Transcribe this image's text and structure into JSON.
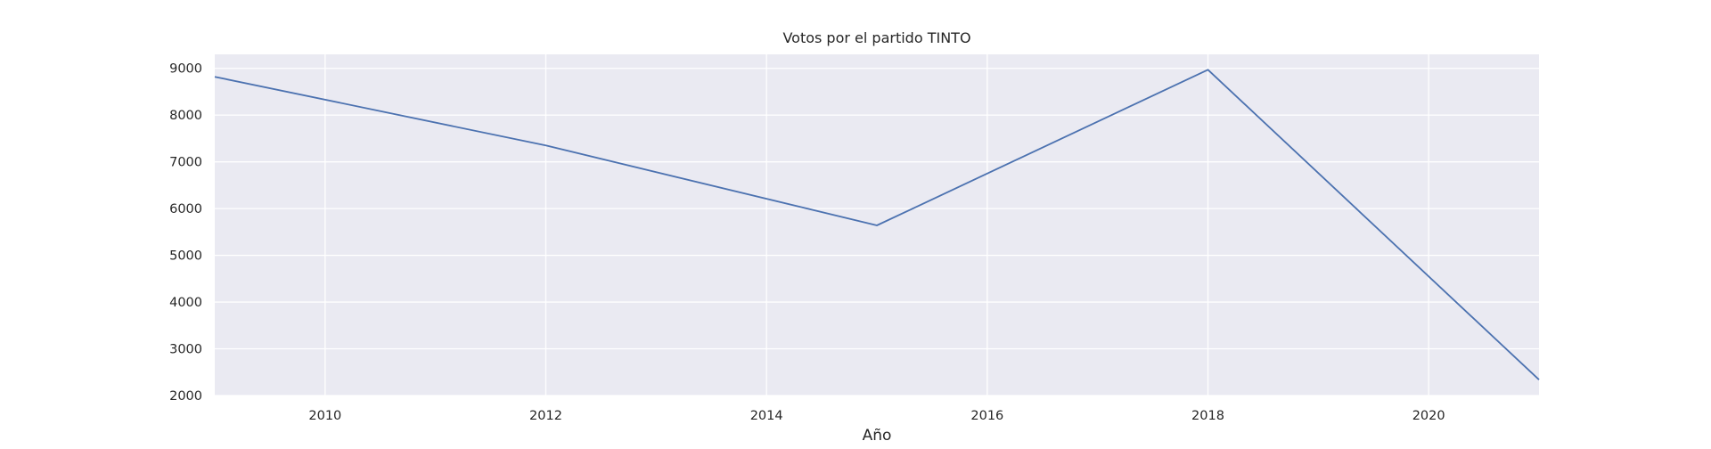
{
  "chart_data": {
    "type": "line",
    "title": "Votos por el partido TINTO",
    "xlabel": "Año",
    "ylabel": "",
    "xlim": [
      2009,
      2021
    ],
    "ylim": [
      2000,
      9300
    ],
    "xticks": [
      2010,
      2012,
      2014,
      2016,
      2018,
      2020
    ],
    "yticks": [
      2000,
      3000,
      4000,
      5000,
      6000,
      7000,
      8000,
      9000
    ],
    "grid": true,
    "series": [
      {
        "color": "#4c72b0",
        "x": [
          2009,
          2012,
          2015,
          2018,
          2021
        ],
        "y": [
          8820,
          7350,
          5640,
          8970,
          2340
        ]
      }
    ],
    "colors": {
      "plot_background": "#eaeaf2",
      "grid": "#ffffff",
      "text": "#262626"
    }
  }
}
